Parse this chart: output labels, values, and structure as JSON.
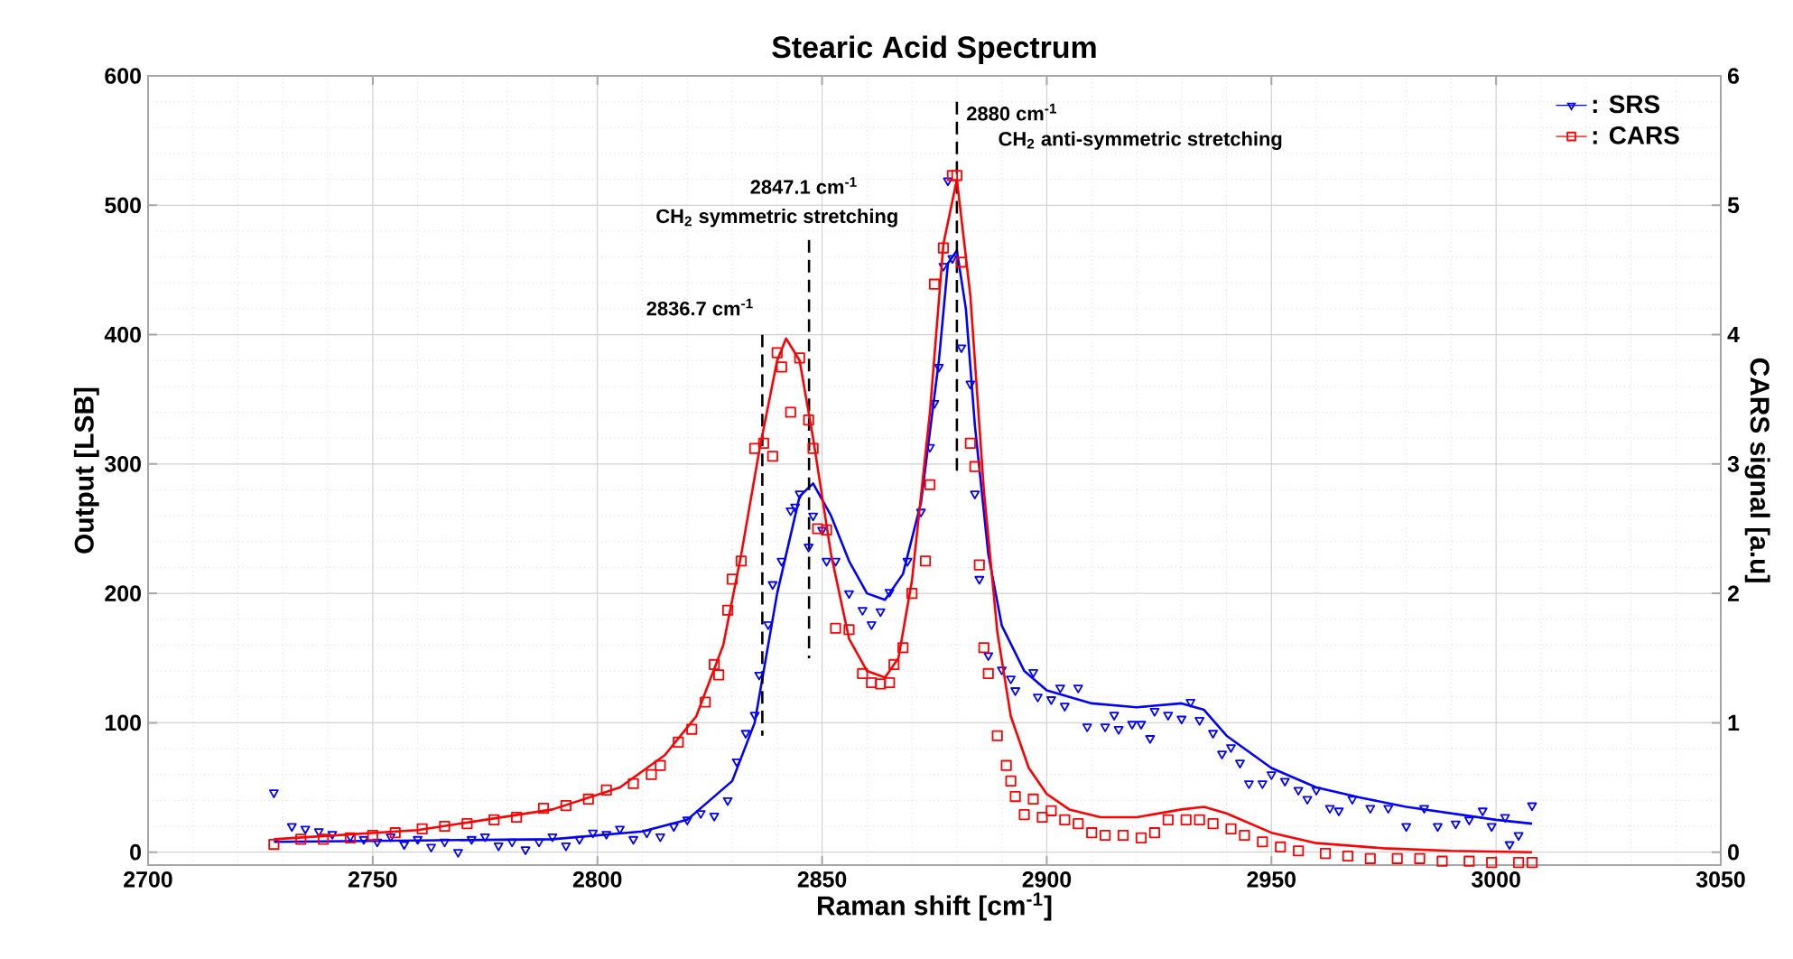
{
  "chart_data": {
    "type": "line",
    "title": "Stearic Acid Spectrum",
    "xlabel": "Raman shift [cm$^{-1}$]",
    "ylabel": "Output [LSB]",
    "y2label": "CARS signal [a.u]",
    "xlim": [
      2700,
      3050
    ],
    "xticks": [
      2700,
      2750,
      2800,
      2850,
      2900,
      2950,
      3000,
      3050
    ],
    "ylim": [
      -10,
      600
    ],
    "yticks": [
      0,
      100,
      200,
      300,
      400,
      500,
      600
    ],
    "y2lim": [
      -0.1,
      6
    ],
    "y2ticks": [
      0,
      1,
      2,
      3,
      4,
      5,
      6
    ],
    "grid": true,
    "legend": "top right",
    "series": [
      {
        "name": ": SRS",
        "type": "scatter",
        "marker": "triangle",
        "color": "#0000ff",
        "x": [
          2728,
          2732,
          2735,
          2738,
          2741,
          2745,
          2748,
          2751,
          2754,
          2757,
          2760,
          2763,
          2766,
          2769,
          2772,
          2775,
          2778,
          2781,
          2784,
          2787,
          2790,
          2793,
          2796,
          2799,
          2802,
          2805,
          2808,
          2811,
          2814,
          2817,
          2820,
          2823,
          2826,
          2829,
          2831,
          2833,
          2835,
          2836,
          2838,
          2839,
          2841,
          2843,
          2844,
          2845,
          2847,
          2848,
          2850,
          2851,
          2853,
          2856,
          2859,
          2861,
          2863,
          2865,
          2869,
          2872,
          2874,
          2875,
          2876,
          2877,
          2878,
          2879,
          2881,
          2883,
          2884,
          2885,
          2887,
          2890,
          2892,
          2893,
          2897,
          2898,
          2901,
          2903,
          2904,
          2907,
          2909,
          2913,
          2915,
          2916,
          2919,
          2921,
          2923,
          2924,
          2927,
          2930,
          2932,
          2934,
          2937,
          2939,
          2941,
          2943,
          2945,
          2948,
          2950,
          2953,
          2956,
          2958,
          2960,
          2963,
          2965,
          2968,
          2972,
          2976,
          2980,
          2984,
          2987,
          2991,
          2994,
          2997,
          2999,
          3002,
          3003,
          3005,
          3008
        ],
        "values": [
          46,
          20,
          18,
          16,
          14,
          12,
          10,
          8,
          12,
          6,
          10,
          4,
          8,
          0,
          10,
          12,
          5,
          8,
          2,
          8,
          12,
          5,
          10,
          15,
          14,
          18,
          10,
          15,
          12,
          20,
          25,
          30,
          28,
          40,
          70,
          92,
          106,
          137,
          176,
          207,
          225,
          264,
          267,
          277,
          236,
          260,
          249,
          225,
          225,
          200,
          187,
          176,
          186,
          201,
          225,
          263,
          313,
          347,
          375,
          453,
          519,
          459,
          390,
          362,
          277,
          211,
          152,
          141,
          134,
          125,
          139,
          120,
          118,
          127,
          113,
          127,
          97,
          97,
          106,
          95,
          99,
          99,
          88,
          109,
          106,
          103,
          116,
          102,
          92,
          76,
          81,
          69,
          53,
          53,
          60,
          55,
          48,
          41,
          48,
          34,
          32,
          41,
          34,
          34,
          20,
          34,
          20,
          22,
          25,
          32,
          20,
          27,
          6,
          13,
          36
        ]
      },
      {
        "marker": "none",
        "line_style": "solid",
        "color": "#0000ff",
        "x": [
          2728,
          2760,
          2790,
          2810,
          2820,
          2830,
          2835,
          2840,
          2845,
          2848,
          2852,
          2856,
          2860,
          2864,
          2868,
          2872,
          2876,
          2878,
          2880,
          2882,
          2884,
          2887,
          2890,
          2895,
          2900,
          2910,
          2920,
          2930,
          2935,
          2940,
          2950,
          2960,
          2970,
          2980,
          2990,
          3000,
          3008
        ],
        "values": [
          8,
          9,
          10,
          16,
          25,
          55,
          100,
          200,
          275,
          285,
          260,
          225,
          200,
          195,
          215,
          270,
          380,
          455,
          465,
          420,
          330,
          230,
          175,
          140,
          125,
          115,
          112,
          115,
          110,
          90,
          65,
          50,
          42,
          35,
          30,
          25,
          22
        ]
      },
      {
        "name": ": CARS",
        "type": "scatter",
        "marker": "square",
        "axis": "y2",
        "color": "#ff0000",
        "x": [
          2728,
          2734,
          2739,
          2745,
          2750,
          2755,
          2761,
          2766,
          2771,
          2777,
          2782,
          2788,
          2793,
          2798,
          2802,
          2808,
          2812,
          2814,
          2818,
          2821,
          2824,
          2826,
          2827,
          2829,
          2830,
          2832,
          2835,
          2837,
          2839,
          2840,
          2841,
          2843,
          2845,
          2847,
          2848,
          2849,
          2851,
          2853,
          2856,
          2859,
          2861,
          2863,
          2865,
          2866,
          2868,
          2870,
          2873,
          2874,
          2875,
          2877,
          2879,
          2880,
          2881,
          2883,
          2884,
          2885,
          2886,
          2887,
          2889,
          2891,
          2892,
          2893,
          2895,
          2897,
          2899,
          2901,
          2904,
          2907,
          2910,
          2913,
          2917,
          2921,
          2924,
          2927,
          2931,
          2934,
          2937,
          2941,
          2944,
          2948,
          2952,
          2956,
          2962,
          2967,
          2972,
          2978,
          2983,
          2988,
          2994,
          2999,
          3005,
          3008
        ],
        "values": [
          0.06,
          0.1,
          0.1,
          0.11,
          0.13,
          0.15,
          0.18,
          0.2,
          0.22,
          0.25,
          0.27,
          0.34,
          0.36,
          0.41,
          0.48,
          0.53,
          0.6,
          0.67,
          0.85,
          0.95,
          1.16,
          1.45,
          1.37,
          1.87,
          2.11,
          2.25,
          3.12,
          3.16,
          3.06,
          3.86,
          3.75,
          3.4,
          3.82,
          3.34,
          3.12,
          2.5,
          2.49,
          1.73,
          1.72,
          1.38,
          1.31,
          1.3,
          1.31,
          1.45,
          1.58,
          2.0,
          2.25,
          2.84,
          4.39,
          4.67,
          5.23,
          5.23,
          4.56,
          3.16,
          2.98,
          2.22,
          1.58,
          1.38,
          0.9,
          0.67,
          0.55,
          0.43,
          0.29,
          0.41,
          0.27,
          0.32,
          0.25,
          0.22,
          0.15,
          0.13,
          0.13,
          0.11,
          0.15,
          0.25,
          0.25,
          0.25,
          0.22,
          0.18,
          0.13,
          0.08,
          0.04,
          0.01,
          -0.01,
          -0.03,
          -0.05,
          -0.05,
          -0.05,
          -0.07,
          -0.07,
          -0.08,
          -0.08,
          -0.08
        ]
      },
      {
        "marker": "none",
        "line_style": "solid",
        "axis": "y2",
        "color": "#ff0000",
        "x": [
          2728,
          2760,
          2790,
          2805,
          2815,
          2822,
          2828,
          2832,
          2836,
          2840,
          2842,
          2845,
          2848,
          2852,
          2856,
          2860,
          2864,
          2867,
          2870,
          2874,
          2877,
          2880,
          2883,
          2886,
          2889,
          2892,
          2896,
          2900,
          2905,
          2912,
          2920,
          2930,
          2935,
          2940,
          2950,
          2960,
          2975,
          2990,
          3008
        ],
        "values": [
          0.1,
          0.17,
          0.33,
          0.5,
          0.75,
          1.05,
          1.6,
          2.3,
          3.1,
          3.8,
          3.97,
          3.8,
          3.2,
          2.3,
          1.65,
          1.4,
          1.35,
          1.5,
          2.1,
          3.4,
          4.7,
          5.2,
          4.3,
          2.8,
          1.7,
          1.05,
          0.65,
          0.45,
          0.33,
          0.27,
          0.27,
          0.33,
          0.35,
          0.3,
          0.15,
          0.07,
          0.03,
          0.01,
          0.0
        ]
      }
    ],
    "ref_lines": [
      {
        "axis": "x",
        "value": 2836.7,
        "label": "2836.7 cm$^{-1}$",
        "line_style": "dashed",
        "color": "#000000"
      },
      {
        "axis": "x",
        "value": 2847.1,
        "label": "2847.1 cm$^{-1}$",
        "line_style": "dashed",
        "color": "#000000"
      },
      {
        "axis": "x",
        "value": 2880,
        "label": "2880 cm$^{-1}$",
        "line_style": "dashed",
        "color": "#000000"
      }
    ],
    "annotations": [
      "CH$_{2}$ symmetric stretching",
      "CH$_{2}$ anti-symmetric stretching"
    ]
  }
}
